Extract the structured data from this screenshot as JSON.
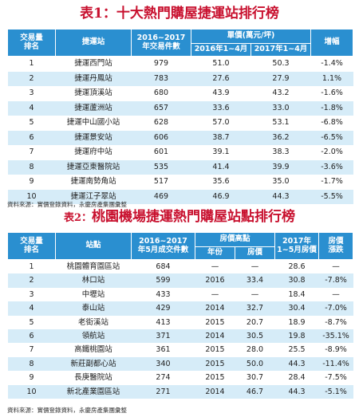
{
  "table1": {
    "title_prefix": "表1：",
    "title": "十大熱門購屋捷運站排行榜",
    "headers": {
      "rank": "交易量\n排名",
      "station": "捷運站",
      "count": "2016~2017\n年交易件數",
      "price_group": "單價(萬元/坪)",
      "price2016": "2016年1~4月",
      "price2017": "2017年1~4月",
      "change": "增幅"
    },
    "rows": [
      {
        "rank": "1",
        "station": "捷運西門站",
        "count": "979",
        "p2016": "51.0",
        "p2017": "50.3",
        "change": "-1.4%"
      },
      {
        "rank": "2",
        "station": "捷運丹鳳站",
        "count": "783",
        "p2016": "27.6",
        "p2017": "27.9",
        "change": "1.1%"
      },
      {
        "rank": "3",
        "station": "捷運頂溪站",
        "count": "680",
        "p2016": "43.9",
        "p2017": "43.2",
        "change": "-1.6%"
      },
      {
        "rank": "4",
        "station": "捷運蘆洲站",
        "count": "657",
        "p2016": "33.6",
        "p2017": "33.0",
        "change": "-1.8%"
      },
      {
        "rank": "5",
        "station": "捷運中山國小站",
        "count": "628",
        "p2016": "57.0",
        "p2017": "53.1",
        "change": "-6.8%"
      },
      {
        "rank": "6",
        "station": "捷運景安站",
        "count": "606",
        "p2016": "38.7",
        "p2017": "36.2",
        "change": "-6.5%"
      },
      {
        "rank": "7",
        "station": "捷運府中站",
        "count": "601",
        "p2016": "39.1",
        "p2017": "38.3",
        "change": "-2.0%"
      },
      {
        "rank": "8",
        "station": "捷運亞東醫院站",
        "count": "535",
        "p2016": "41.4",
        "p2017": "39.9",
        "change": "-3.6%"
      },
      {
        "rank": "9",
        "station": "捷運南勢角站",
        "count": "517",
        "p2016": "35.6",
        "p2017": "35.0",
        "change": "-1.7%"
      },
      {
        "rank": "10",
        "station": "捷運江子翠站",
        "count": "469",
        "p2016": "46.9",
        "p2017": "44.3",
        "change": "-5.5%"
      }
    ],
    "source": "資料來源：實價登錄資料，永慶房產集團彙整"
  },
  "table2": {
    "title_prefix": "表2：",
    "title": "桃園機場捷運熱門購屋站點排行榜",
    "headers": {
      "rank": "交易量\n排名",
      "station": "站點",
      "count": "2016~2017\n年5月成交件數",
      "high_group": "房價高點",
      "year": "年份",
      "price": "房價",
      "price2017": "2017年\n1~5月房價",
      "drop": "房價\n漲跌"
    },
    "rows": [
      {
        "rank": "1",
        "station": "桃園體育園區站",
        "count": "684",
        "year": "—",
        "price": "—",
        "p2017": "28.6",
        "drop": "—"
      },
      {
        "rank": "2",
        "station": "林口站",
        "count": "599",
        "year": "2016",
        "price": "33.4",
        "p2017": "30.8",
        "drop": "-7.8%"
      },
      {
        "rank": "3",
        "station": "中壢站",
        "count": "433",
        "year": "—",
        "price": "—",
        "p2017": "18.4",
        "drop": "—"
      },
      {
        "rank": "4",
        "station": "泰山站",
        "count": "429",
        "year": "2014",
        "price": "32.7",
        "p2017": "30.4",
        "drop": "-7.0%"
      },
      {
        "rank": "5",
        "station": "老街溪站",
        "count": "413",
        "year": "2015",
        "price": "20.7",
        "p2017": "18.9",
        "drop": "-8.7%"
      },
      {
        "rank": "6",
        "station": "領航站",
        "count": "371",
        "year": "2014",
        "price": "30.5",
        "p2017": "19.8",
        "drop": "-35.1%"
      },
      {
        "rank": "7",
        "station": "高鐵桃園站",
        "count": "361",
        "year": "2015",
        "price": "28.0",
        "p2017": "25.5",
        "drop": "-8.9%"
      },
      {
        "rank": "8",
        "station": "新莊副都心站",
        "count": "340",
        "year": "2015",
        "price": "50.0",
        "p2017": "44.3",
        "drop": "-11.4%"
      },
      {
        "rank": "9",
        "station": "長庚醫院站",
        "count": "274",
        "year": "2015",
        "price": "30.7",
        "p2017": "28.4",
        "drop": "-7.5%"
      },
      {
        "rank": "10",
        "station": "新北產業園區站",
        "count": "271",
        "year": "2014",
        "price": "46.7",
        "p2017": "44.3",
        "drop": "-5.1%"
      }
    ],
    "source": "資料來源：實價登錄資料，永慶房產集團彙整"
  },
  "colors": {
    "title": "#c8102e",
    "header_bg": "#2a8fd0",
    "stripe": "#d6ecf8"
  }
}
